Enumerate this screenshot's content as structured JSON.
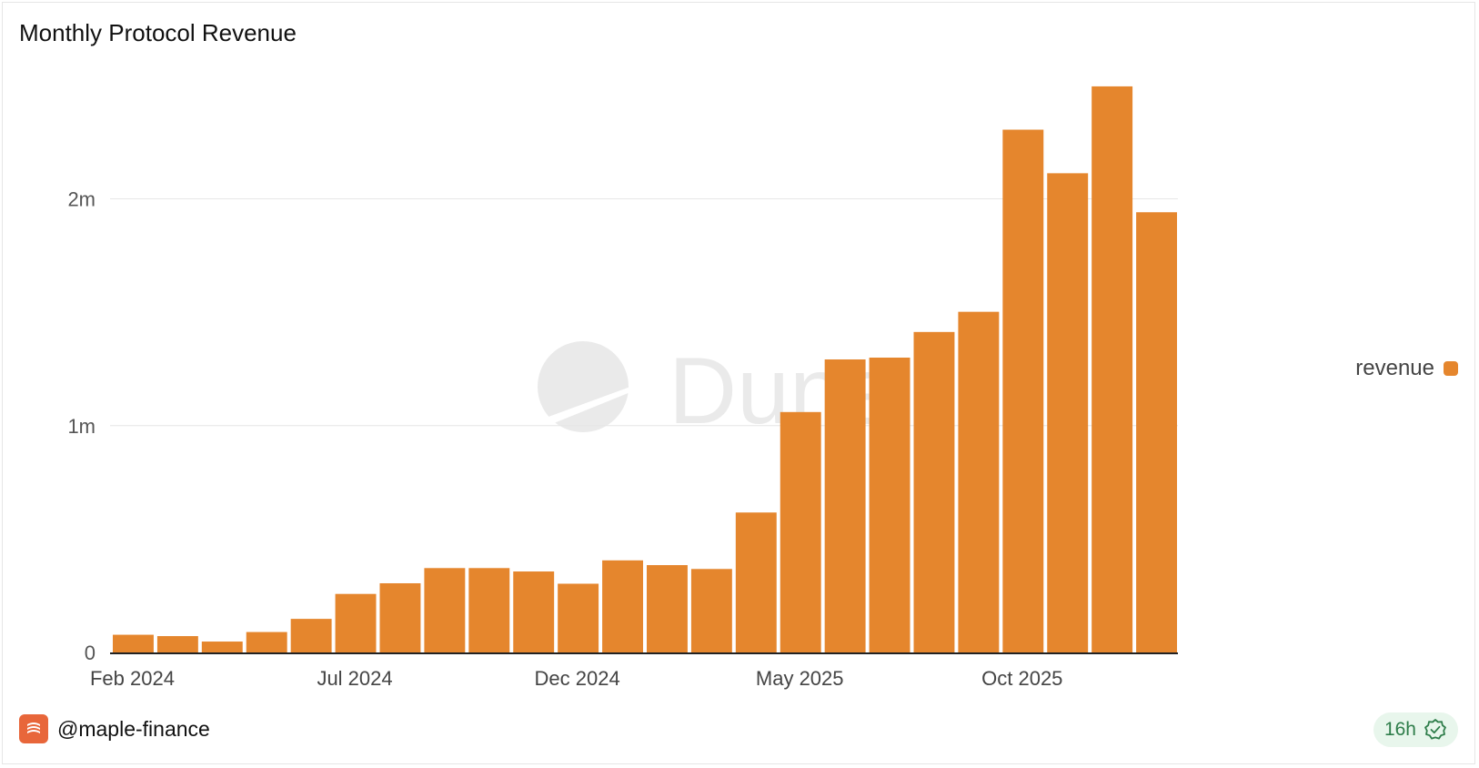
{
  "title": "Monthly Protocol Revenue",
  "author": "@maple-finance",
  "freshness": "16h",
  "watermark": "Dune",
  "colors": {
    "bar": "#e5862d",
    "grid": "#e6e6e6",
    "axis": "#222222",
    "badge_text": "#2e7d4a"
  },
  "chart_data": {
    "type": "bar",
    "categories": [
      "Feb 2024",
      "Mar 2024",
      "Apr 2024",
      "May 2024",
      "Jun 2024",
      "Jul 2024",
      "Aug 2024",
      "Sep 2024",
      "Oct 2024",
      "Nov 2024",
      "Dec 2024",
      "Jan 2025",
      "Feb 2025",
      "Mar 2025",
      "Apr 2025",
      "May 2025",
      "Jun 2025",
      "Jul 2025",
      "Aug 2025",
      "Sep 2025",
      "Oct 2025",
      "Nov 2025",
      "Dec 2025",
      "Jan 2026"
    ],
    "series": [
      {
        "name": "revenue",
        "values": [
          78000,
          72000,
          48000,
          90000,
          148000,
          258000,
          305000,
          372000,
          372000,
          357000,
          303000,
          406000,
          385000,
          368000,
          617000,
          1060000,
          1292000,
          1300000,
          1413000,
          1502000,
          2305000,
          2113000,
          2496000,
          1941000
        ]
      }
    ],
    "xtick_labels": [
      "Feb 2024",
      "Jul 2024",
      "Dec 2024",
      "May 2025",
      "Oct 2025"
    ],
    "ytick_values": [
      0,
      1000000,
      2000000
    ],
    "ytick_labels": [
      "0",
      "1m",
      "2m"
    ],
    "ylim": [
      0,
      2600000
    ],
    "grid": true,
    "legend": {
      "position": "right",
      "entries": [
        "revenue"
      ]
    }
  }
}
